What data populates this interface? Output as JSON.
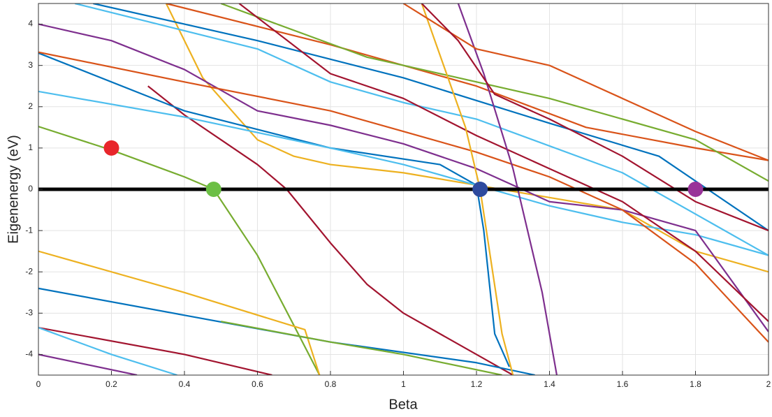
{
  "chart_data": {
    "type": "line",
    "xlabel": "Beta",
    "ylabel": "Eigenenergy (eV)",
    "xlim": [
      0,
      2
    ],
    "ylim": [
      -4.5,
      4.5
    ],
    "xticks": [
      0,
      0.2,
      0.4,
      0.6,
      0.8,
      1,
      1.2,
      1.4,
      1.6,
      1.8,
      2
    ],
    "yticks": [
      -4,
      -3,
      -2,
      -1,
      0,
      1,
      2,
      3,
      4
    ],
    "grid": true,
    "series": [
      {
        "color": "#77AC30",
        "x": [
          0,
          0.2,
          0.4,
          0.48,
          0.6,
          0.7,
          0.77
        ],
        "values": [
          1.52,
          0.95,
          0.3,
          0,
          -1.6,
          -3.3,
          -4.5
        ]
      },
      {
        "color": "#A2142F",
        "x": [
          0.3,
          0.4,
          0.5,
          0.6,
          0.68,
          0.8,
          0.9,
          1.0,
          1.2,
          1.3
        ],
        "values": [
          2.5,
          1.8,
          1.2,
          0.6,
          0,
          -1.3,
          -2.3,
          -3,
          -4,
          -4.5
        ]
      },
      {
        "color": "#EDB120",
        "x": [
          0.35,
          0.45,
          0.6,
          0.7,
          0.8,
          1.0,
          1.2,
          1.4,
          1.6,
          1.8,
          2.0
        ],
        "values": [
          4.5,
          2.7,
          1.2,
          0.8,
          0.6,
          0.4,
          0.1,
          -0.2,
          -0.5,
          -1.5,
          -2.0
        ]
      },
      {
        "color": "#0072BD",
        "x": [
          0,
          0.4,
          0.8,
          1.1,
          1.2,
          1.22,
          1.25,
          1.29
        ],
        "values": [
          3.3,
          1.9,
          1.0,
          0.6,
          0.1,
          -1,
          -3.5,
          -4.3
        ]
      },
      {
        "color": "#4DBEEE",
        "x": [
          0,
          0.4,
          0.8,
          1.0,
          1.2,
          1.4,
          1.6,
          1.8,
          2.0
        ],
        "values": [
          2.37,
          1.75,
          1.0,
          0.6,
          0.1,
          -0.4,
          -0.8,
          -1.1,
          -1.6
        ]
      },
      {
        "color": "#7E2F8E",
        "x": [
          0,
          0.2,
          0.4,
          0.6,
          0.8,
          1.0,
          1.2,
          1.4,
          1.6,
          1.8,
          2.0
        ],
        "values": [
          4.0,
          3.6,
          2.9,
          1.9,
          1.55,
          1.1,
          0.5,
          -0.3,
          -0.5,
          -1.0,
          -3.45
        ]
      },
      {
        "color": "#D95319",
        "x": [
          0,
          0.4,
          0.8,
          1.0,
          1.2,
          1.4,
          1.6,
          1.8,
          2.0
        ],
        "values": [
          3.32,
          2.6,
          1.9,
          1.4,
          0.9,
          0.3,
          -0.5,
          -1.8,
          -3.7
        ]
      },
      {
        "color": "#EDB120",
        "x": [
          0,
          0.4,
          0.73,
          0.77
        ],
        "values": [
          -1.5,
          -2.5,
          -3.4,
          -4.5
        ]
      },
      {
        "color": "#0072BD",
        "x": [
          0,
          0.4,
          0.8,
          1.2,
          1.36
        ],
        "values": [
          -2.4,
          -3.05,
          -3.7,
          -4.2,
          -4.5
        ]
      },
      {
        "color": "#A2142F",
        "x": [
          0,
          0.4,
          0.64
        ],
        "values": [
          -3.35,
          -4.0,
          -4.5
        ]
      },
      {
        "color": "#4DBEEE",
        "x": [
          0,
          0.2,
          0.38
        ],
        "values": [
          -3.35,
          -4.0,
          -4.5
        ]
      },
      {
        "color": "#7E2F8E",
        "x": [
          0,
          0.27
        ],
        "values": [
          -4.0,
          -4.5
        ]
      },
      {
        "color": "#77AC30",
        "x": [
          0.5,
          0.8,
          1.0,
          1.27
        ],
        "values": [
          -3.2,
          -3.7,
          -4.0,
          -4.5
        ]
      },
      {
        "color": "#0072BD",
        "x": [
          0.15,
          0.6,
          1.0,
          1.4,
          1.7,
          2.0
        ],
        "values": [
          4.5,
          3.6,
          2.7,
          1.6,
          0.8,
          -1.0
        ]
      },
      {
        "color": "#D95319",
        "x": [
          0.35,
          0.8,
          1.2,
          1.5,
          1.8,
          2.0
        ],
        "values": [
          4.5,
          3.5,
          2.5,
          1.5,
          1.0,
          0.7
        ]
      },
      {
        "color": "#4DBEEE",
        "x": [
          0.1,
          0.6,
          0.8,
          1.0,
          1.2,
          1.6,
          2.0
        ],
        "values": [
          4.5,
          3.4,
          2.6,
          2.1,
          1.7,
          0.4,
          -1.6
        ]
      },
      {
        "color": "#77AC30",
        "x": [
          0.5,
          0.9,
          1.1,
          1.4,
          1.8,
          2.0
        ],
        "values": [
          4.5,
          3.2,
          2.8,
          2.2,
          1.2,
          0.2
        ]
      },
      {
        "color": "#A2142F",
        "x": [
          0.55,
          0.8,
          1.0,
          1.2,
          1.4,
          1.6,
          1.8,
          2.0
        ],
        "values": [
          4.5,
          2.8,
          2.2,
          1.3,
          0.5,
          -0.3,
          -1.5,
          -3.2
        ]
      },
      {
        "color": "#7E2F8E",
        "x": [
          1.15,
          1.22,
          1.3,
          1.38,
          1.42
        ],
        "values": [
          4.5,
          2.8,
          0.5,
          -2.5,
          -4.5
        ]
      },
      {
        "color": "#EDB120",
        "x": [
          1.05,
          1.17,
          1.21,
          1.27,
          1.3
        ],
        "values": [
          4.5,
          1.5,
          0,
          -3.5,
          -4.5
        ]
      },
      {
        "color": "#D95319",
        "x": [
          1.0,
          1.2,
          1.4,
          1.6,
          1.8,
          2.0
        ],
        "values": [
          4.5,
          3.4,
          3.0,
          2.2,
          1.4,
          0.7
        ]
      },
      {
        "color": "#A2142F",
        "x": [
          1.05,
          1.15,
          1.25,
          1.4,
          1.6,
          1.8,
          2.0
        ],
        "values": [
          4.5,
          3.6,
          2.3,
          1.7,
          0.8,
          -0.3,
          -1.0
        ]
      },
      {
        "color": "#000000",
        "x": [
          0,
          2
        ],
        "values": [
          0,
          0
        ],
        "width": 5
      }
    ],
    "markers": {
      "x": [
        0.2,
        0.48,
        1.21,
        1.8
      ],
      "values": [
        1.0,
        0,
        0,
        0
      ],
      "colors": [
        "#E8262B",
        "#6CBF45",
        "#2E4A9E",
        "#993399"
      ]
    }
  }
}
